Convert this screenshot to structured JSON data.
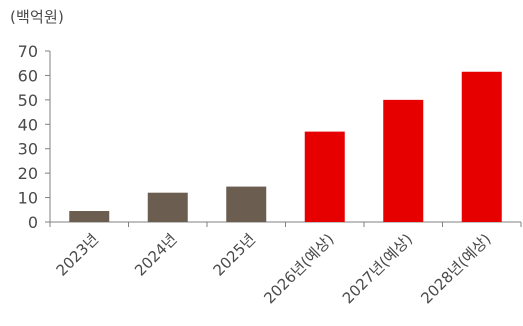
{
  "chart_data": {
    "type": "bar",
    "unit_label": "(백억원)",
    "categories": [
      "2023년",
      "2024년",
      "2025년",
      "2026년(예상)",
      "2027년(예상)",
      "2028년(예상)"
    ],
    "values": [
      4.5,
      12,
      14.5,
      37,
      50,
      61.5
    ],
    "bar_colors": [
      "#6b5e50",
      "#6b5e50",
      "#6b5e50",
      "#e60000",
      "#e60000",
      "#e60000"
    ],
    "ylim": [
      0,
      70
    ],
    "yticks": [
      0,
      10,
      20,
      30,
      40,
      50,
      60,
      70
    ],
    "grid": false,
    "legend": "none",
    "axis_color": "#808080",
    "text_color": "#4a4a4a"
  }
}
